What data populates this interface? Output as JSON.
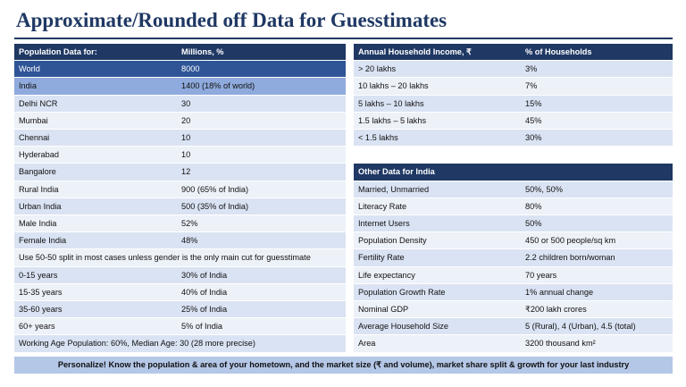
{
  "title": "Approximate/Rounded off Data for Guesstimates",
  "left_table": {
    "header": [
      "Population Data for:",
      "Millions, %"
    ],
    "rows": [
      [
        "World",
        "8000"
      ],
      [
        "India",
        "1400 (18% of world)"
      ],
      [
        "Delhi NCR",
        "30"
      ],
      [
        "Mumbai",
        "20"
      ],
      [
        "Chennai",
        "10"
      ],
      [
        "Hyderabad",
        "10"
      ],
      [
        "Bangalore",
        "12"
      ],
      [
        "Rural India",
        "900 (65% of India)"
      ],
      [
        "Urban India",
        "500 (35% of India)"
      ],
      [
        "Male India",
        "52%"
      ],
      [
        "Female India",
        "48%"
      ],
      [
        "Use 50-50 split in most cases unless gender is the only main cut for guesstimate"
      ],
      [
        "0-15 years",
        "30% of India"
      ],
      [
        "15-35 years",
        "40% of India"
      ],
      [
        "35-60 years",
        "25% of India"
      ],
      [
        "60+ years",
        "5% of India"
      ],
      [
        "Working Age Population: 60%, Median Age: 30 (28 more precise)"
      ]
    ]
  },
  "income_table": {
    "header": [
      "Annual Household Income, ₹",
      "% of Households"
    ],
    "rows": [
      [
        "> 20 lakhs",
        "3%"
      ],
      [
        "10 lakhs – 20 lakhs",
        "7%"
      ],
      [
        "5 lakhs – 10 lakhs",
        "15%"
      ],
      [
        "1.5 lakhs – 5 lakhs",
        "45%"
      ],
      [
        "< 1.5 lakhs",
        "30%"
      ]
    ]
  },
  "other_table": {
    "header": "Other Data for India",
    "rows": [
      [
        "Married, Unmarried",
        "50%, 50%"
      ],
      [
        "Literacy Rate",
        "80%"
      ],
      [
        "Internet Users",
        "50%"
      ],
      [
        "Population Density",
        "450 or 500 people/sq km"
      ],
      [
        "Fertility Rate",
        "2.2 children born/woman"
      ],
      [
        "Life expectancy",
        "70 years"
      ],
      [
        "Population Growth Rate",
        "1% annual change"
      ],
      [
        "Nominal GDP",
        "₹200 lakh crores"
      ],
      [
        "Average Household Size",
        "5 (Rural), 4 (Urban), 4.5 (total)"
      ],
      [
        "Area",
        "3200 thousand km²"
      ]
    ]
  },
  "footer": "Personalize! Know the population & area of your hometown, and the market size (₹ and volume), market share split & growth for your last industry"
}
